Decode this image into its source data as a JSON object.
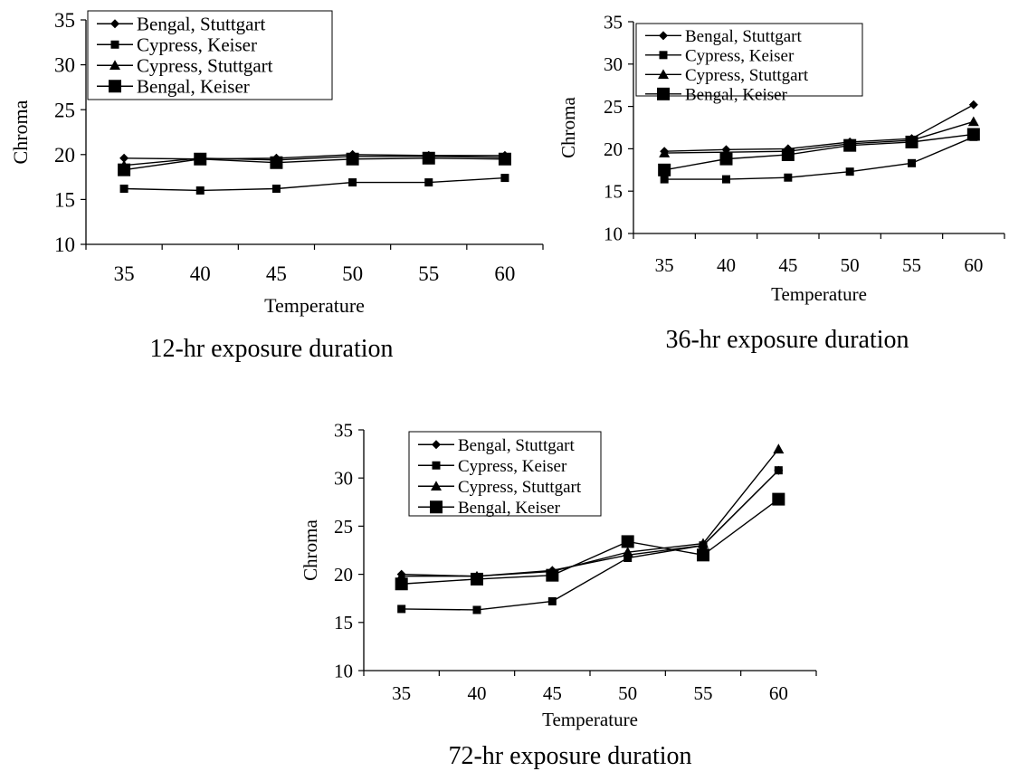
{
  "chart_data": [
    {
      "type": "line",
      "caption": "12-hr exposure duration",
      "xlabel": "Temperature",
      "ylabel": "Chroma",
      "x": [
        35,
        40,
        45,
        50,
        55,
        60
      ],
      "ylim": [
        10,
        35
      ],
      "yticks": [
        10,
        15,
        20,
        25,
        30,
        35
      ],
      "grid": false,
      "legend": "top-left",
      "series": [
        {
          "name": "Bengal, Stuttgart",
          "marker": "diamond",
          "values": [
            19.6,
            19.5,
            19.6,
            20.0,
            19.9,
            19.9
          ]
        },
        {
          "name": "Cypress, Keiser",
          "marker": "square",
          "values": [
            16.2,
            16.0,
            16.2,
            16.9,
            16.9,
            17.4
          ]
        },
        {
          "name": "Cypress, Stuttgart",
          "marker": "triangle",
          "values": [
            18.8,
            19.6,
            19.4,
            19.8,
            19.8,
            19.7
          ]
        },
        {
          "name": "Bengal, Keiser",
          "marker": "big-square",
          "values": [
            18.3,
            19.5,
            19.1,
            19.5,
            19.6,
            19.5
          ]
        }
      ]
    },
    {
      "type": "line",
      "caption": "36-hr exposure duration",
      "xlabel": "Temperature",
      "ylabel": "Chroma",
      "x": [
        35,
        40,
        45,
        50,
        55,
        60
      ],
      "ylim": [
        10,
        35
      ],
      "yticks": [
        10,
        15,
        20,
        25,
        30,
        35
      ],
      "grid": false,
      "legend": "top-left",
      "series": [
        {
          "name": "Bengal, Stuttgart",
          "marker": "diamond",
          "values": [
            19.7,
            19.9,
            20.0,
            20.8,
            21.2,
            25.2
          ]
        },
        {
          "name": "Cypress, Keiser",
          "marker": "square",
          "values": [
            16.4,
            16.4,
            16.6,
            17.3,
            18.3,
            21.4
          ]
        },
        {
          "name": "Cypress, Stuttgart",
          "marker": "triangle",
          "values": [
            19.5,
            19.6,
            19.7,
            20.6,
            21.0,
            23.2
          ]
        },
        {
          "name": "Bengal, Keiser",
          "marker": "big-square",
          "values": [
            17.5,
            18.8,
            19.3,
            20.4,
            20.8,
            21.7
          ]
        }
      ]
    },
    {
      "type": "line",
      "caption": "72-hr exposure duration",
      "xlabel": "Temperature",
      "ylabel": "Chroma",
      "x": [
        35,
        40,
        45,
        50,
        55,
        60
      ],
      "ylim": [
        10,
        35
      ],
      "yticks": [
        10,
        15,
        20,
        25,
        30,
        35
      ],
      "grid": false,
      "legend": "top-left",
      "series": [
        {
          "name": "Bengal, Stuttgart",
          "marker": "diamond",
          "values": [
            20.0,
            19.8,
            20.4,
            22.0,
            23.0,
            30.8
          ]
        },
        {
          "name": "Cypress, Keiser",
          "marker": "square",
          "values": [
            16.4,
            16.3,
            17.2,
            21.7,
            23.0,
            30.8
          ]
        },
        {
          "name": "Cypress, Stuttgart",
          "marker": "triangle",
          "values": [
            19.8,
            19.8,
            20.3,
            22.3,
            23.2,
            33.0
          ]
        },
        {
          "name": "Bengal, Keiser",
          "marker": "big-square",
          "values": [
            19.0,
            19.5,
            19.9,
            23.4,
            22.0,
            27.8
          ]
        }
      ]
    }
  ]
}
